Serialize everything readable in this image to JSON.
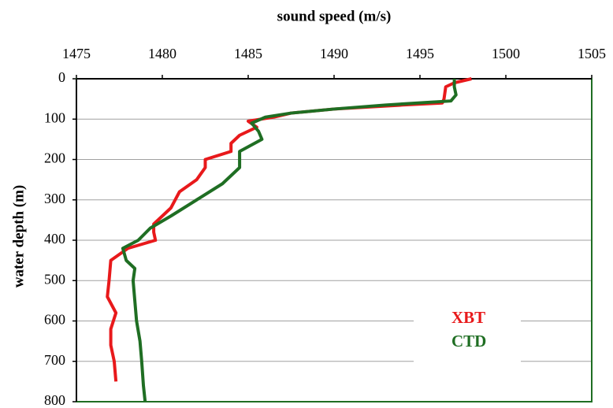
{
  "chart_data": {
    "type": "line",
    "title": "sound speed (m/s)",
    "y_label": "water depth (m)",
    "xlim": [
      1475,
      1505
    ],
    "xticks": [
      1475,
      1480,
      1485,
      1490,
      1495,
      1500,
      1505
    ],
    "ylim": [
      0,
      800
    ],
    "yticks": [
      0,
      100,
      200,
      300,
      400,
      500,
      600,
      700,
      800
    ],
    "y_inverted": true,
    "x_axis_position": "top",
    "grid": true,
    "legend": "lower right",
    "series": [
      {
        "name": "XBT",
        "color": "#e8191b",
        "x": [
          1498,
          1497,
          1496.5,
          1496.4,
          1496.3,
          1494,
          1490,
          1487.5,
          1486.5,
          1485,
          1485.5,
          1484.5,
          1484,
          1484,
          1482.5,
          1482.5,
          1482,
          1481,
          1480.5,
          1479.5,
          1479.5,
          1479.6,
          1478,
          1477,
          1476.9,
          1476.8,
          1477.3,
          1477,
          1477,
          1477.2,
          1477.3
        ],
        "y": [
          0,
          10,
          20,
          50,
          60,
          65,
          75,
          85,
          95,
          105,
          120,
          140,
          160,
          180,
          200,
          220,
          250,
          280,
          320,
          360,
          380,
          400,
          420,
          450,
          500,
          540,
          580,
          620,
          660,
          700,
          750
        ]
      },
      {
        "name": "CTD",
        "color": "#1f6e23",
        "x": [
          1497,
          1497,
          1497.1,
          1496.8,
          1493,
          1490,
          1487.5,
          1486,
          1485.2,
          1485.6,
          1485.8,
          1484.5,
          1484.5,
          1483.5,
          1482,
          1480.5,
          1479.3,
          1478.6,
          1477.7,
          1477.9,
          1478.4,
          1478.3,
          1478.4,
          1478.5,
          1478.7,
          1478.8,
          1478.9,
          1479
        ],
        "y": [
          0,
          20,
          40,
          55,
          65,
          75,
          85,
          95,
          110,
          130,
          150,
          180,
          220,
          260,
          300,
          340,
          370,
          400,
          420,
          450,
          470,
          500,
          550,
          600,
          650,
          700,
          760,
          800
        ]
      }
    ]
  }
}
